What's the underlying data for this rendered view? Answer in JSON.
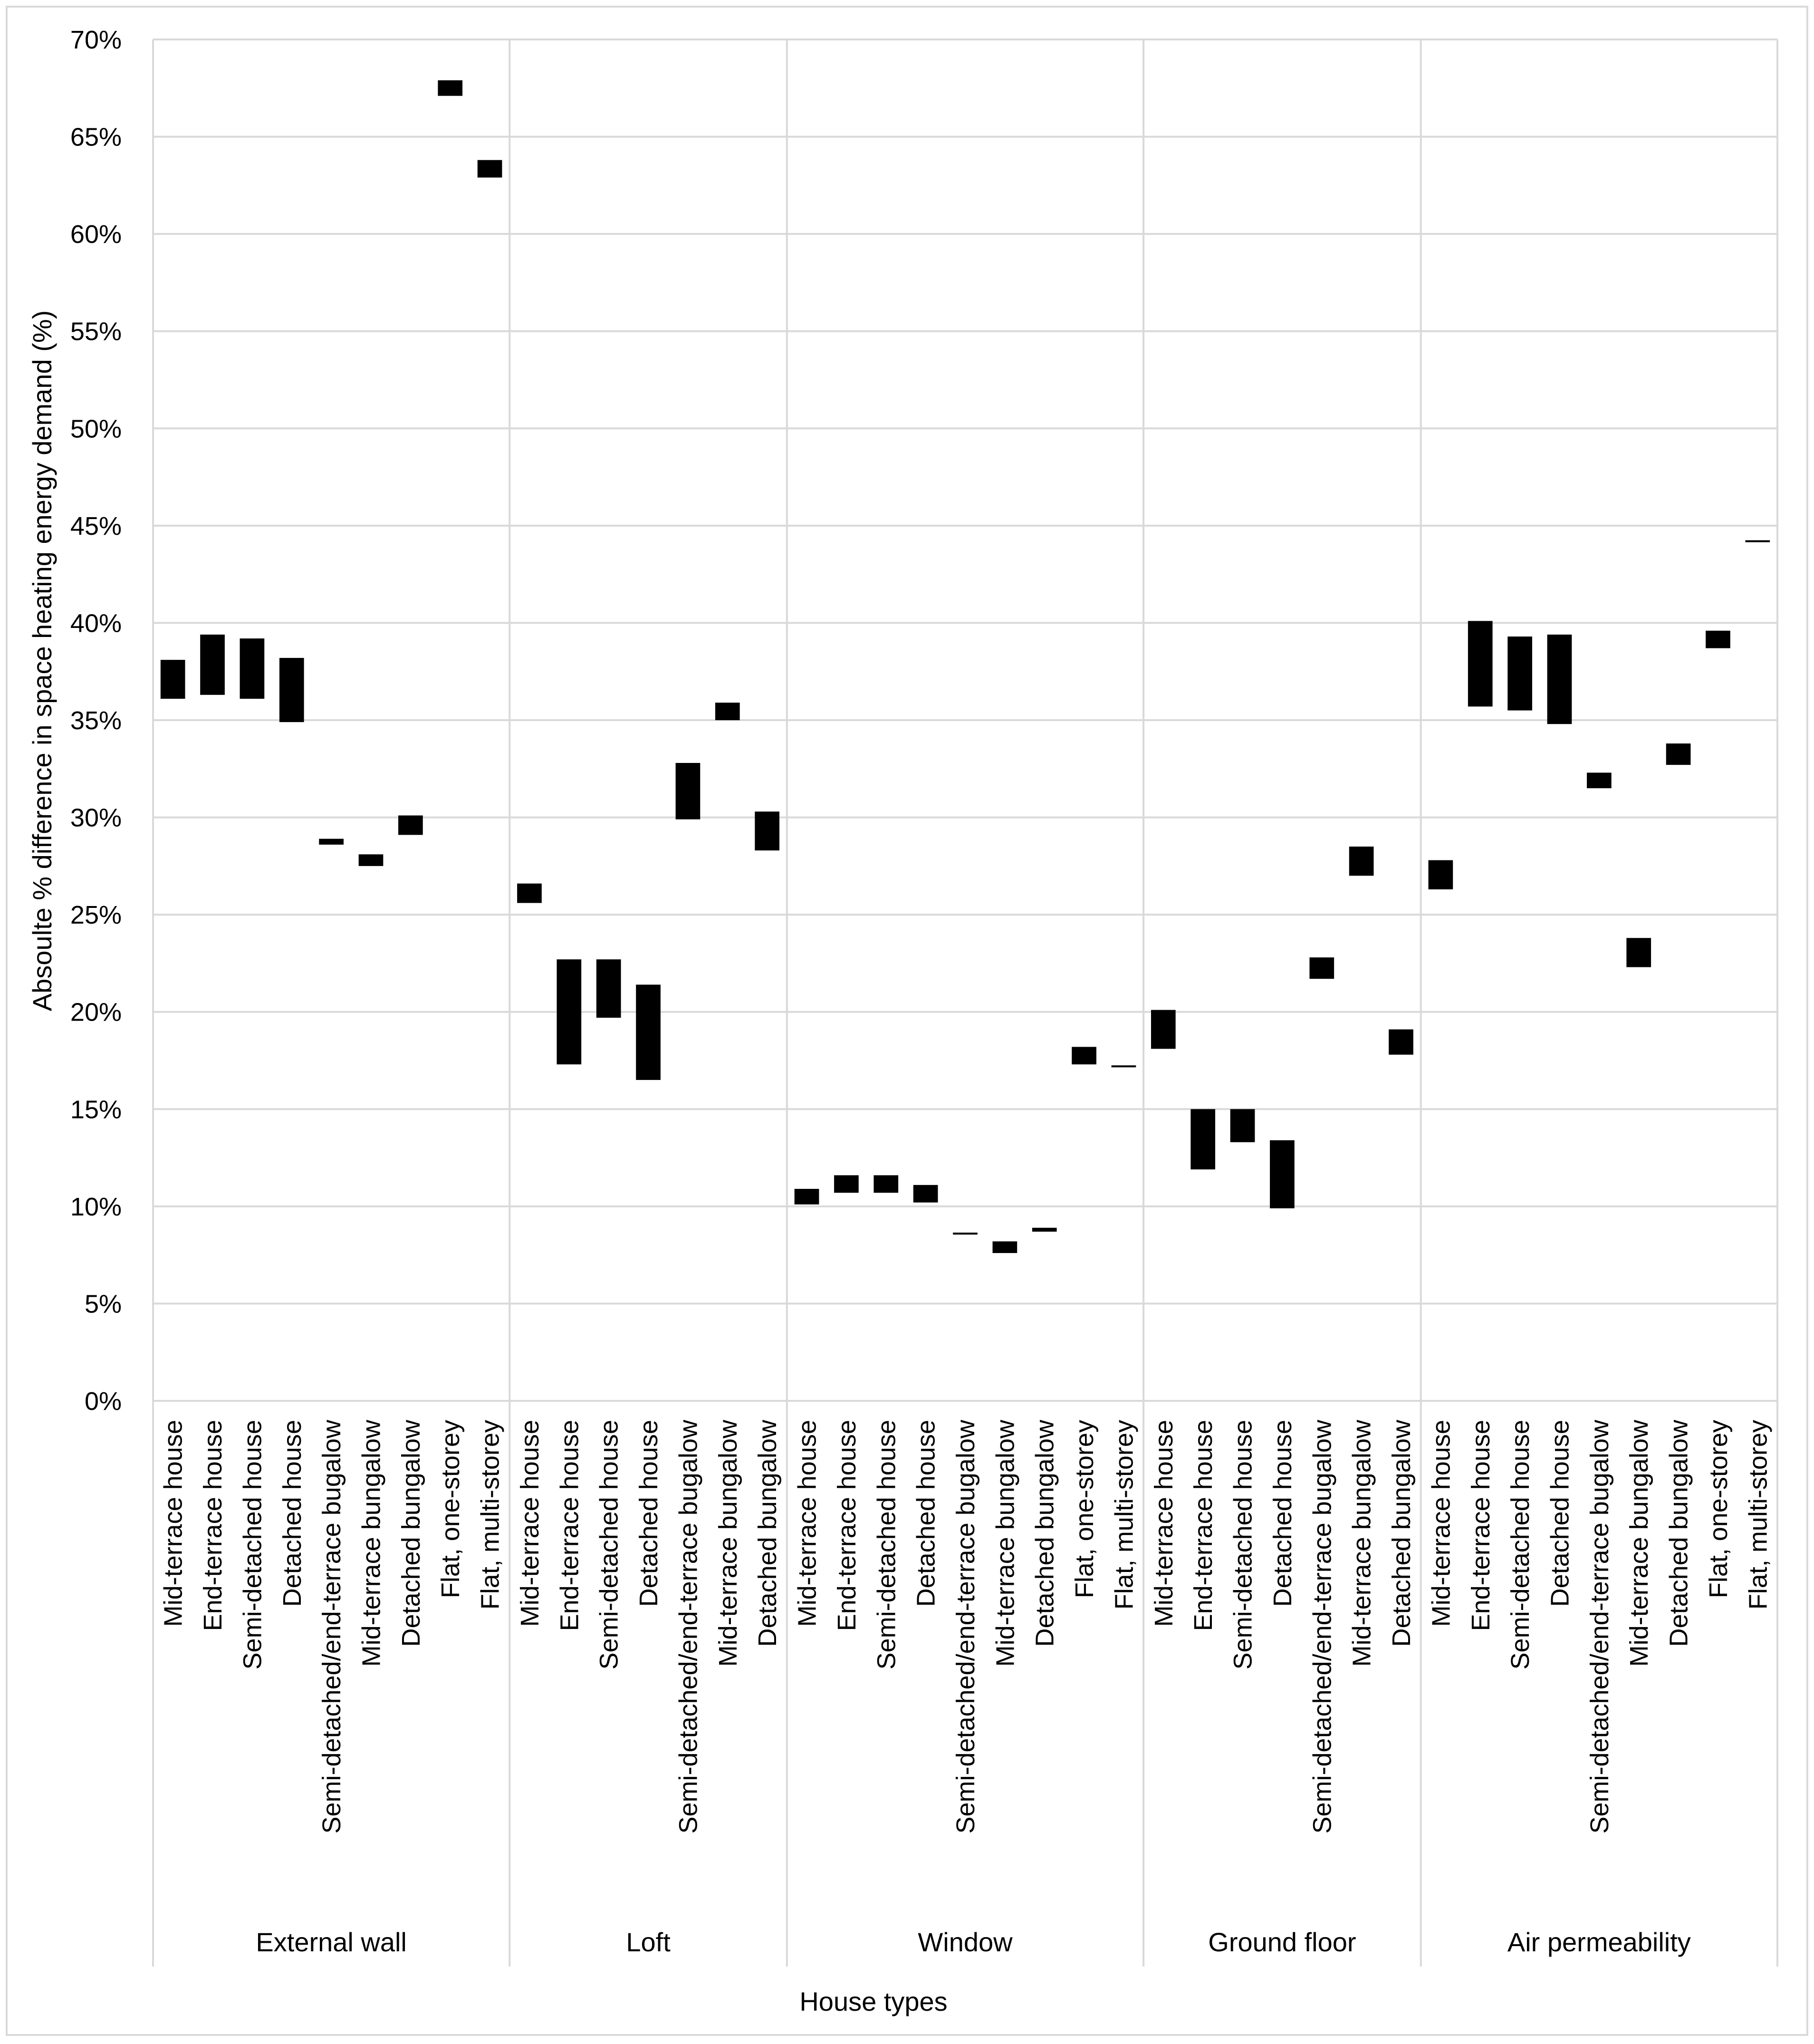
{
  "chart_data": {
    "type": "floating-bar",
    "title": "",
    "xlabel": "House types",
    "ylabel": "Absoulte % difference in space heating energy demand (%)",
    "ylim": [
      0,
      70
    ],
    "ytick_step": 5,
    "ytick_labels": [
      "0%",
      "5%",
      "10%",
      "15%",
      "20%",
      "25%",
      "30%",
      "35%",
      "40%",
      "45%",
      "50%",
      "55%",
      "60%",
      "65%",
      "70%"
    ],
    "grid": true,
    "bar_color": "#000000",
    "grid_color": "#d9d9d9",
    "groups": [
      {
        "name": "External wall",
        "items": [
          {
            "label": "Mid-terrace house",
            "low": 36.1,
            "high": 38.1
          },
          {
            "label": "End-terrace house",
            "low": 36.3,
            "high": 39.4
          },
          {
            "label": "Semi-detached house",
            "low": 36.1,
            "high": 39.2
          },
          {
            "label": "Detached house",
            "low": 34.9,
            "high": 38.2
          },
          {
            "label": "Semi-detached/end-terrace bugalow",
            "low": 28.6,
            "high": 28.9
          },
          {
            "label": "Mid-terrace bungalow",
            "low": 27.5,
            "high": 28.1
          },
          {
            "label": "Detached bungalow",
            "low": 29.1,
            "high": 30.1
          },
          {
            "label": "Flat, one-storey",
            "low": 67.1,
            "high": 67.9
          },
          {
            "label": "Flat, multi-storey",
            "low": 62.9,
            "high": 63.8
          }
        ]
      },
      {
        "name": "Loft",
        "items": [
          {
            "label": "Mid-terrace house",
            "low": 25.6,
            "high": 26.6
          },
          {
            "label": "End-terrace house",
            "low": 17.3,
            "high": 22.7
          },
          {
            "label": "Semi-detached house",
            "low": 19.7,
            "high": 22.7
          },
          {
            "label": "Detached house",
            "low": 16.5,
            "high": 21.4
          },
          {
            "label": "Semi-detached/end-terrace bugalow",
            "low": 29.9,
            "high": 32.8
          },
          {
            "label": "Mid-terrace bungalow",
            "low": 35.0,
            "high": 35.9
          },
          {
            "label": "Detached bungalow",
            "low": 28.3,
            "high": 30.3
          }
        ]
      },
      {
        "name": "Window",
        "items": [
          {
            "label": "Mid-terrace house",
            "low": 10.1,
            "high": 10.9
          },
          {
            "label": "End-terrace house",
            "low": 10.7,
            "high": 11.6
          },
          {
            "label": "Semi-detached house",
            "low": 10.7,
            "high": 11.6
          },
          {
            "label": "Detached house",
            "low": 10.2,
            "high": 11.1
          },
          {
            "label": "Semi-detached/end-terrace bugalow",
            "low": 8.55,
            "high": 8.65
          },
          {
            "label": "Mid-terrace bungalow",
            "low": 7.6,
            "high": 8.2
          },
          {
            "label": "Detached bungalow",
            "low": 8.7,
            "high": 8.9
          },
          {
            "label": "Flat, one-storey",
            "low": 17.3,
            "high": 18.2
          },
          {
            "label": "Flat, multi-storey",
            "low": 17.15,
            "high": 17.25
          }
        ]
      },
      {
        "name": "Ground floor",
        "items": [
          {
            "label": "Mid-terrace house",
            "low": 18.1,
            "high": 20.1
          },
          {
            "label": "End-terrace house",
            "low": 11.9,
            "high": 15.0
          },
          {
            "label": "Semi-detached house",
            "low": 13.3,
            "high": 15.0
          },
          {
            "label": "Detached house",
            "low": 9.9,
            "high": 13.4
          },
          {
            "label": "Semi-detached/end-terrace bugalow",
            "low": 21.7,
            "high": 22.8
          },
          {
            "label": "Mid-terrace bungalow",
            "low": 27.0,
            "high": 28.5
          },
          {
            "label": "Detached bungalow",
            "low": 17.8,
            "high": 19.1
          }
        ]
      },
      {
        "name": "Air permeability",
        "items": [
          {
            "label": "Mid-terrace house",
            "low": 26.3,
            "high": 27.8
          },
          {
            "label": "End-terrace house",
            "low": 35.7,
            "high": 40.1
          },
          {
            "label": "Semi-detached house",
            "low": 35.5,
            "high": 39.3
          },
          {
            "label": "Detached house",
            "low": 34.8,
            "high": 39.4
          },
          {
            "label": "Semi-detached/end-terrace bugalow",
            "low": 31.5,
            "high": 32.3
          },
          {
            "label": "Mid-terrace bungalow",
            "low": 22.3,
            "high": 23.8
          },
          {
            "label": "Detached bungalow",
            "low": 32.7,
            "high": 33.8
          },
          {
            "label": "Flat, one-storey",
            "low": 38.7,
            "high": 39.6
          },
          {
            "label": "Flat, multi-storey",
            "low": 44.15,
            "high": 44.25
          }
        ]
      }
    ]
  }
}
